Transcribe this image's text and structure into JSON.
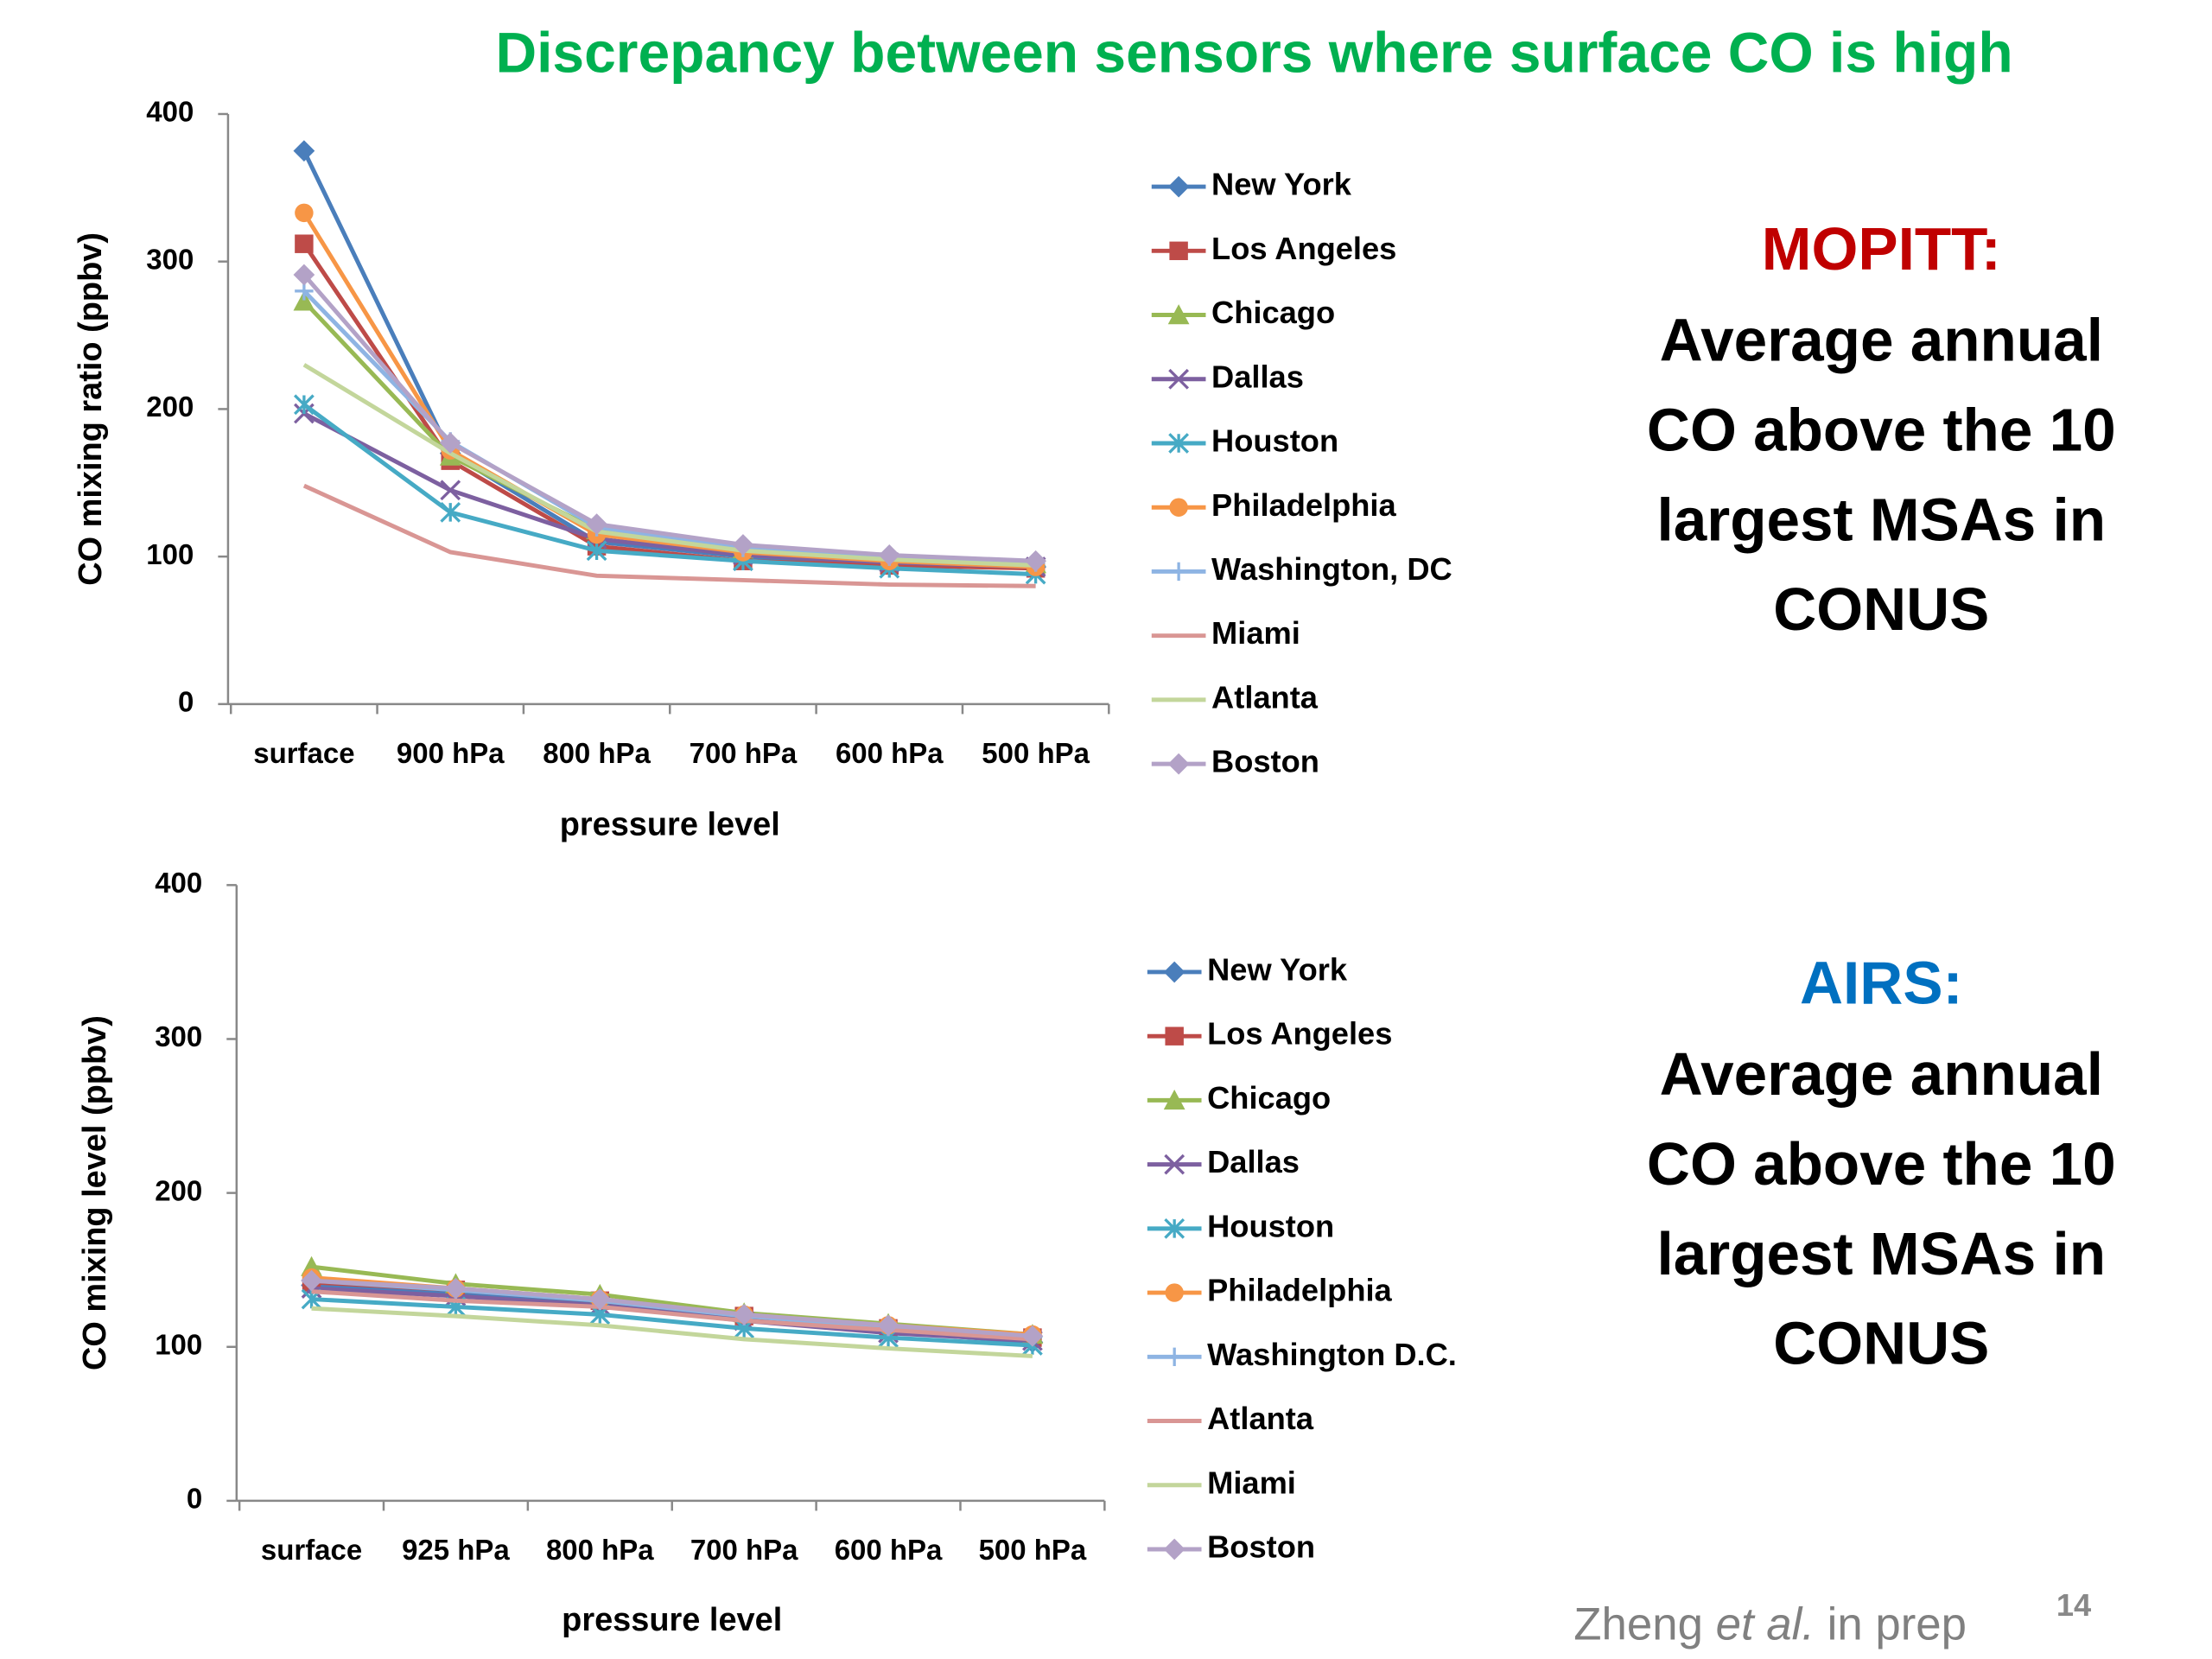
{
  "slide": {
    "title": "Discrepancy between sensors where surface CO is high",
    "panels": [
      {
        "heading": "MOPITT:",
        "heading_color": "#c00000",
        "lines": [
          "Average annual",
          "CO above the 10",
          "largest MSAs in",
          "CONUS"
        ]
      },
      {
        "heading": "AIRS:",
        "heading_color": "#0070c0",
        "lines": [
          "Average annual",
          "CO above the 10",
          "largest MSAs in",
          "CONUS"
        ]
      }
    ],
    "citation": [
      "Zheng ",
      "et al.",
      " in prep"
    ],
    "page_number": "14"
  },
  "chart_data": [
    {
      "type": "line",
      "xlabel": "pressure level",
      "ylabel": "CO mixing ratio (ppbv)",
      "categories": [
        "surface",
        "900 hPa",
        "800 hPa",
        "700 hPa",
        "600 hPa",
        "500 hPa"
      ],
      "ylim": [
        0,
        400
      ],
      "yticks": [
        0,
        100,
        200,
        300,
        400
      ],
      "grid": false,
      "legend": "right",
      "series": [
        {
          "name": "New York",
          "color": "#4a7ebb",
          "marker": "diamond",
          "values": [
            375,
            170,
            110,
            100,
            95,
            93
          ]
        },
        {
          "name": "Los Angeles",
          "color": "#be4b48",
          "marker": "square",
          "values": [
            312,
            165,
            107,
            97,
            94,
            92
          ]
        },
        {
          "name": "Chicago",
          "color": "#98b954",
          "marker": "triangle",
          "values": [
            273,
            168,
            118,
            105,
            98,
            95
          ]
        },
        {
          "name": "Dallas",
          "color": "#7d60a0",
          "marker": "x",
          "values": [
            197,
            145,
            112,
            101,
            96,
            93
          ]
        },
        {
          "name": "Houston",
          "color": "#46aac5",
          "marker": "asterisk",
          "values": [
            203,
            130,
            104,
            97,
            92,
            88
          ]
        },
        {
          "name": "Philadelphia",
          "color": "#f79646",
          "marker": "circle",
          "values": [
            333,
            172,
            115,
            103,
            97,
            93
          ]
        },
        {
          "name": "Washington, DC",
          "color": "#8eb4e3",
          "marker": "plus",
          "values": [
            280,
            178,
            120,
            106,
            100,
            96
          ]
        },
        {
          "name": "Miami",
          "color": "#d99694",
          "values": [
            148,
            103,
            87,
            84,
            81,
            80
          ]
        },
        {
          "name": "Atlanta",
          "color": "#c3d69b",
          "values": [
            230,
            170,
            117,
            104,
            98,
            94
          ]
        },
        {
          "name": "Boston",
          "color": "#b3a2c7",
          "marker": "diamond",
          "values": [
            291,
            177,
            122,
            108,
            101,
            97
          ]
        }
      ]
    },
    {
      "type": "line",
      "xlabel": "pressure level",
      "ylabel": "CO mixing level (ppbv)",
      "categories": [
        "surface",
        "925 hPa",
        "800 hPa",
        "700 hPa",
        "600 hPa",
        "500 hPa"
      ],
      "ylim": [
        0,
        400
      ],
      "yticks": [
        0,
        100,
        200,
        300,
        400
      ],
      "grid": false,
      "legend": "right",
      "series": [
        {
          "name": "New York",
          "color": "#4a7ebb",
          "marker": "diamond",
          "values": [
            140,
            135,
            128,
            118,
            110,
            103
          ]
        },
        {
          "name": "Los Angeles",
          "color": "#be4b48",
          "marker": "square",
          "values": [
            142,
            137,
            130,
            120,
            112,
            106
          ]
        },
        {
          "name": "Chicago",
          "color": "#98b954",
          "marker": "triangle",
          "values": [
            152,
            141,
            134,
            122,
            115,
            108
          ]
        },
        {
          "name": "Dallas",
          "color": "#7d60a0",
          "marker": "x",
          "values": [
            138,
            133,
            127,
            117,
            109,
            104
          ]
        },
        {
          "name": "Houston",
          "color": "#46aac5",
          "marker": "asterisk",
          "values": [
            131,
            126,
            121,
            112,
            106,
            101
          ]
        },
        {
          "name": "Philadelphia",
          "color": "#f79646",
          "marker": "circle",
          "values": [
            145,
            138,
            131,
            121,
            114,
            108
          ]
        },
        {
          "name": "Washington D.C.",
          "color": "#8eb4e3",
          "marker": "plus",
          "values": [
            143,
            137,
            130,
            120,
            113,
            107
          ]
        },
        {
          "name": "Atlanta",
          "color": "#d99694",
          "values": [
            136,
            130,
            126,
            117,
            111,
            105
          ]
        },
        {
          "name": "Miami",
          "color": "#c3d69b",
          "values": [
            125,
            120,
            114,
            105,
            99,
            94
          ]
        },
        {
          "name": "Boston",
          "color": "#b3a2c7",
          "marker": "diamond",
          "values": [
            143,
            138,
            131,
            121,
            114,
            107
          ]
        }
      ]
    }
  ]
}
